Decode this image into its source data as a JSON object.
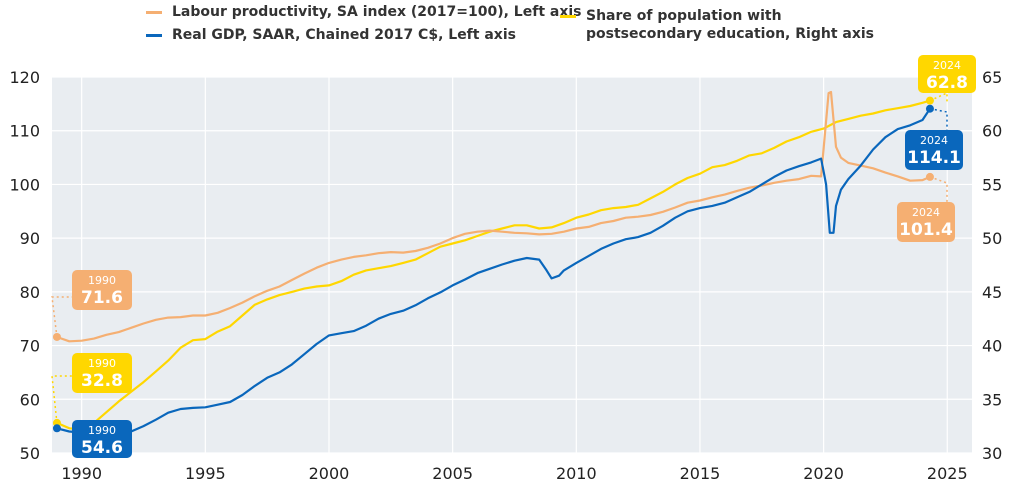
{
  "chart_data": {
    "type": "line",
    "title": "",
    "xlabel": "",
    "ylabel_left": "",
    "ylabel_right": "",
    "xlim": [
      1988.8,
      2026
    ],
    "x_ticks": [
      1990,
      1995,
      2000,
      2005,
      2010,
      2015,
      2020,
      2025
    ],
    "ylim_left": [
      50,
      120
    ],
    "y_ticks_left": [
      50,
      60,
      70,
      80,
      90,
      100,
      110,
      120
    ],
    "ylim_right": [
      30,
      65
    ],
    "y_ticks_right": [
      30,
      35,
      40,
      45,
      50,
      55,
      60,
      65
    ],
    "grid": true,
    "legend_position": "top",
    "series": [
      {
        "name": "Labour productivity, SA index (2017=100), Left axis",
        "axis": "left",
        "color": "#F5AF72",
        "x": [
          1989.0,
          1989.5,
          1990.0,
          1990.5,
          1991.0,
          1991.5,
          1992.0,
          1992.5,
          1993.0,
          1993.5,
          1994.0,
          1994.5,
          1995.0,
          1995.5,
          1996.0,
          1996.5,
          1997.0,
          1997.5,
          1998.0,
          1998.5,
          1999.0,
          1999.5,
          2000.0,
          2000.5,
          2001.0,
          2001.5,
          2002.0,
          2002.5,
          2003.0,
          2003.5,
          2004.0,
          2004.5,
          2005.0,
          2005.5,
          2006.0,
          2006.5,
          2007.0,
          2007.5,
          2008.0,
          2008.5,
          2009.0,
          2009.5,
          2010.0,
          2010.5,
          2011.0,
          2011.5,
          2012.0,
          2012.5,
          2013.0,
          2013.5,
          2014.0,
          2014.5,
          2015.0,
          2015.5,
          2016.0,
          2016.5,
          2017.0,
          2017.5,
          2018.0,
          2018.5,
          2019.0,
          2019.5,
          2019.9,
          2020.2,
          2020.3,
          2020.5,
          2020.7,
          2021.0,
          2021.5,
          2022.0,
          2022.5,
          2023.0,
          2023.5,
          2024.0,
          2024.3
        ],
        "values": [
          71.6,
          70.8,
          70.9,
          71.3,
          72.0,
          72.5,
          73.3,
          74.1,
          74.8,
          75.2,
          75.3,
          75.6,
          75.6,
          76.1,
          77.0,
          78.0,
          79.2,
          80.2,
          81.0,
          82.2,
          83.4,
          84.5,
          85.4,
          86.0,
          86.5,
          86.8,
          87.2,
          87.4,
          87.3,
          87.6,
          88.2,
          89.0,
          90.0,
          90.8,
          91.2,
          91.4,
          91.2,
          91.0,
          90.9,
          90.7,
          90.8,
          91.2,
          91.8,
          92.1,
          92.8,
          93.2,
          93.8,
          94.0,
          94.3,
          94.9,
          95.7,
          96.6,
          97.0,
          97.6,
          98.1,
          98.8,
          99.4,
          99.8,
          100.3,
          100.7,
          101.0,
          101.6,
          101.5,
          117.0,
          117.2,
          107.0,
          105.0,
          104.0,
          103.5,
          103.0,
          102.2,
          101.5,
          100.7,
          100.8,
          101.4
        ]
      },
      {
        "name": "Real GDP, SAAR, Chained 2017 C$, Left axis",
        "axis": "left",
        "color": "#0A67BC",
        "x": [
          1989.0,
          1989.5,
          1990.0,
          1990.5,
          1991.0,
          1991.5,
          1992.0,
          1992.5,
          1993.0,
          1993.5,
          1994.0,
          1994.5,
          1995.0,
          1995.5,
          1996.0,
          1996.5,
          1997.0,
          1997.5,
          1998.0,
          1998.5,
          1999.0,
          1999.5,
          2000.0,
          2000.5,
          2001.0,
          2001.5,
          2002.0,
          2002.5,
          2003.0,
          2003.5,
          2004.0,
          2004.5,
          2005.0,
          2005.5,
          2006.0,
          2006.5,
          2007.0,
          2007.5,
          2008.0,
          2008.5,
          2008.8,
          2009.0,
          2009.3,
          2009.5,
          2010.0,
          2010.5,
          2011.0,
          2011.5,
          2012.0,
          2012.5,
          2013.0,
          2013.5,
          2014.0,
          2014.5,
          2015.0,
          2015.5,
          2016.0,
          2016.5,
          2017.0,
          2017.5,
          2018.0,
          2018.5,
          2019.0,
          2019.5,
          2019.9,
          2020.1,
          2020.25,
          2020.4,
          2020.5,
          2020.7,
          2021.0,
          2021.5,
          2022.0,
          2022.5,
          2023.0,
          2023.5,
          2024.0,
          2024.3
        ],
        "values": [
          54.6,
          54.0,
          53.8,
          53.5,
          53.0,
          53.4,
          54.0,
          55.0,
          56.2,
          57.5,
          58.2,
          58.4,
          58.5,
          59.0,
          59.5,
          60.8,
          62.5,
          64.0,
          65.0,
          66.5,
          68.4,
          70.3,
          71.9,
          72.3,
          72.7,
          73.7,
          75.0,
          75.9,
          76.5,
          77.5,
          78.8,
          79.9,
          81.2,
          82.3,
          83.5,
          84.3,
          85.1,
          85.8,
          86.3,
          86.0,
          84.0,
          82.5,
          83.0,
          84.0,
          85.4,
          86.7,
          88.0,
          89.0,
          89.8,
          90.2,
          91.0,
          92.3,
          93.8,
          95.0,
          95.6,
          96.0,
          96.6,
          97.6,
          98.6,
          100.0,
          101.4,
          102.6,
          103.4,
          104.1,
          104.8,
          100.0,
          91.0,
          91.0,
          96.0,
          99.0,
          101.0,
          103.5,
          106.5,
          108.8,
          110.3,
          111.0,
          112.0,
          114.1
        ]
      },
      {
        "name": "Share of population with postsecondary education, Right axis",
        "axis": "right",
        "color": "#FFD700",
        "x": [
          1989.0,
          1989.5,
          1990.0,
          1990.5,
          1991.0,
          1991.5,
          1992.0,
          1992.5,
          1993.0,
          1993.5,
          1994.0,
          1994.5,
          1995.0,
          1995.5,
          1996.0,
          1996.5,
          1997.0,
          1997.5,
          1998.0,
          1998.5,
          1999.0,
          1999.5,
          2000.0,
          2000.5,
          2001.0,
          2001.5,
          2002.0,
          2002.5,
          2003.0,
          2003.5,
          2004.0,
          2004.5,
          2005.0,
          2005.5,
          2006.0,
          2006.5,
          2007.0,
          2007.5,
          2008.0,
          2008.5,
          2009.0,
          2009.5,
          2010.0,
          2010.5,
          2011.0,
          2011.5,
          2012.0,
          2012.5,
          2013.0,
          2013.5,
          2014.0,
          2014.5,
          2015.0,
          2015.5,
          2016.0,
          2016.5,
          2017.0,
          2017.5,
          2018.0,
          2018.5,
          2019.0,
          2019.5,
          2020.0,
          2020.5,
          2021.0,
          2021.5,
          2022.0,
          2022.5,
          2023.0,
          2023.5,
          2024.0,
          2024.3
        ],
        "values": [
          32.8,
          32.3,
          32.2,
          32.8,
          33.8,
          34.8,
          35.7,
          36.6,
          37.6,
          38.6,
          39.8,
          40.5,
          40.6,
          41.3,
          41.8,
          42.8,
          43.8,
          44.3,
          44.7,
          45.0,
          45.3,
          45.5,
          45.6,
          46.0,
          46.6,
          47.0,
          47.2,
          47.4,
          47.7,
          48.0,
          48.6,
          49.2,
          49.5,
          49.8,
          50.2,
          50.6,
          50.9,
          51.2,
          51.2,
          50.9,
          51.0,
          51.4,
          51.9,
          52.2,
          52.6,
          52.8,
          52.9,
          53.1,
          53.7,
          54.3,
          55.0,
          55.6,
          56.0,
          56.6,
          56.8,
          57.2,
          57.7,
          57.9,
          58.4,
          59.0,
          59.4,
          59.9,
          60.2,
          60.8,
          61.1,
          61.4,
          61.6,
          61.9,
          62.1,
          62.3,
          62.6,
          62.8
        ]
      }
    ],
    "annotations": [
      {
        "series": 0,
        "x": 1989.0,
        "y": 71.6,
        "year": "1990",
        "value": "71.6",
        "fill": "#F5AF72"
      },
      {
        "series": 2,
        "x": 1989.0,
        "y": 32.8,
        "year": "1990",
        "value": "32.8",
        "fill": "#FFD700"
      },
      {
        "series": 1,
        "x": 1989.0,
        "y": 54.6,
        "year": "1990",
        "value": "54.6",
        "fill": "#0A67BC"
      },
      {
        "series": 2,
        "x": 2024.3,
        "y": 62.8,
        "year": "2024",
        "value": "62.8",
        "fill": "#FFD700"
      },
      {
        "series": 1,
        "x": 2024.3,
        "y": 114.1,
        "year": "2024",
        "value": "114.1",
        "fill": "#0A67BC"
      },
      {
        "series": 0,
        "x": 2024.3,
        "y": 101.4,
        "year": "2024",
        "value": "101.4",
        "fill": "#F5AF72"
      }
    ],
    "colors": {
      "plot_background": "#E9EDF1",
      "grid": "#FFFFFF",
      "tick_text": "#222222"
    }
  }
}
